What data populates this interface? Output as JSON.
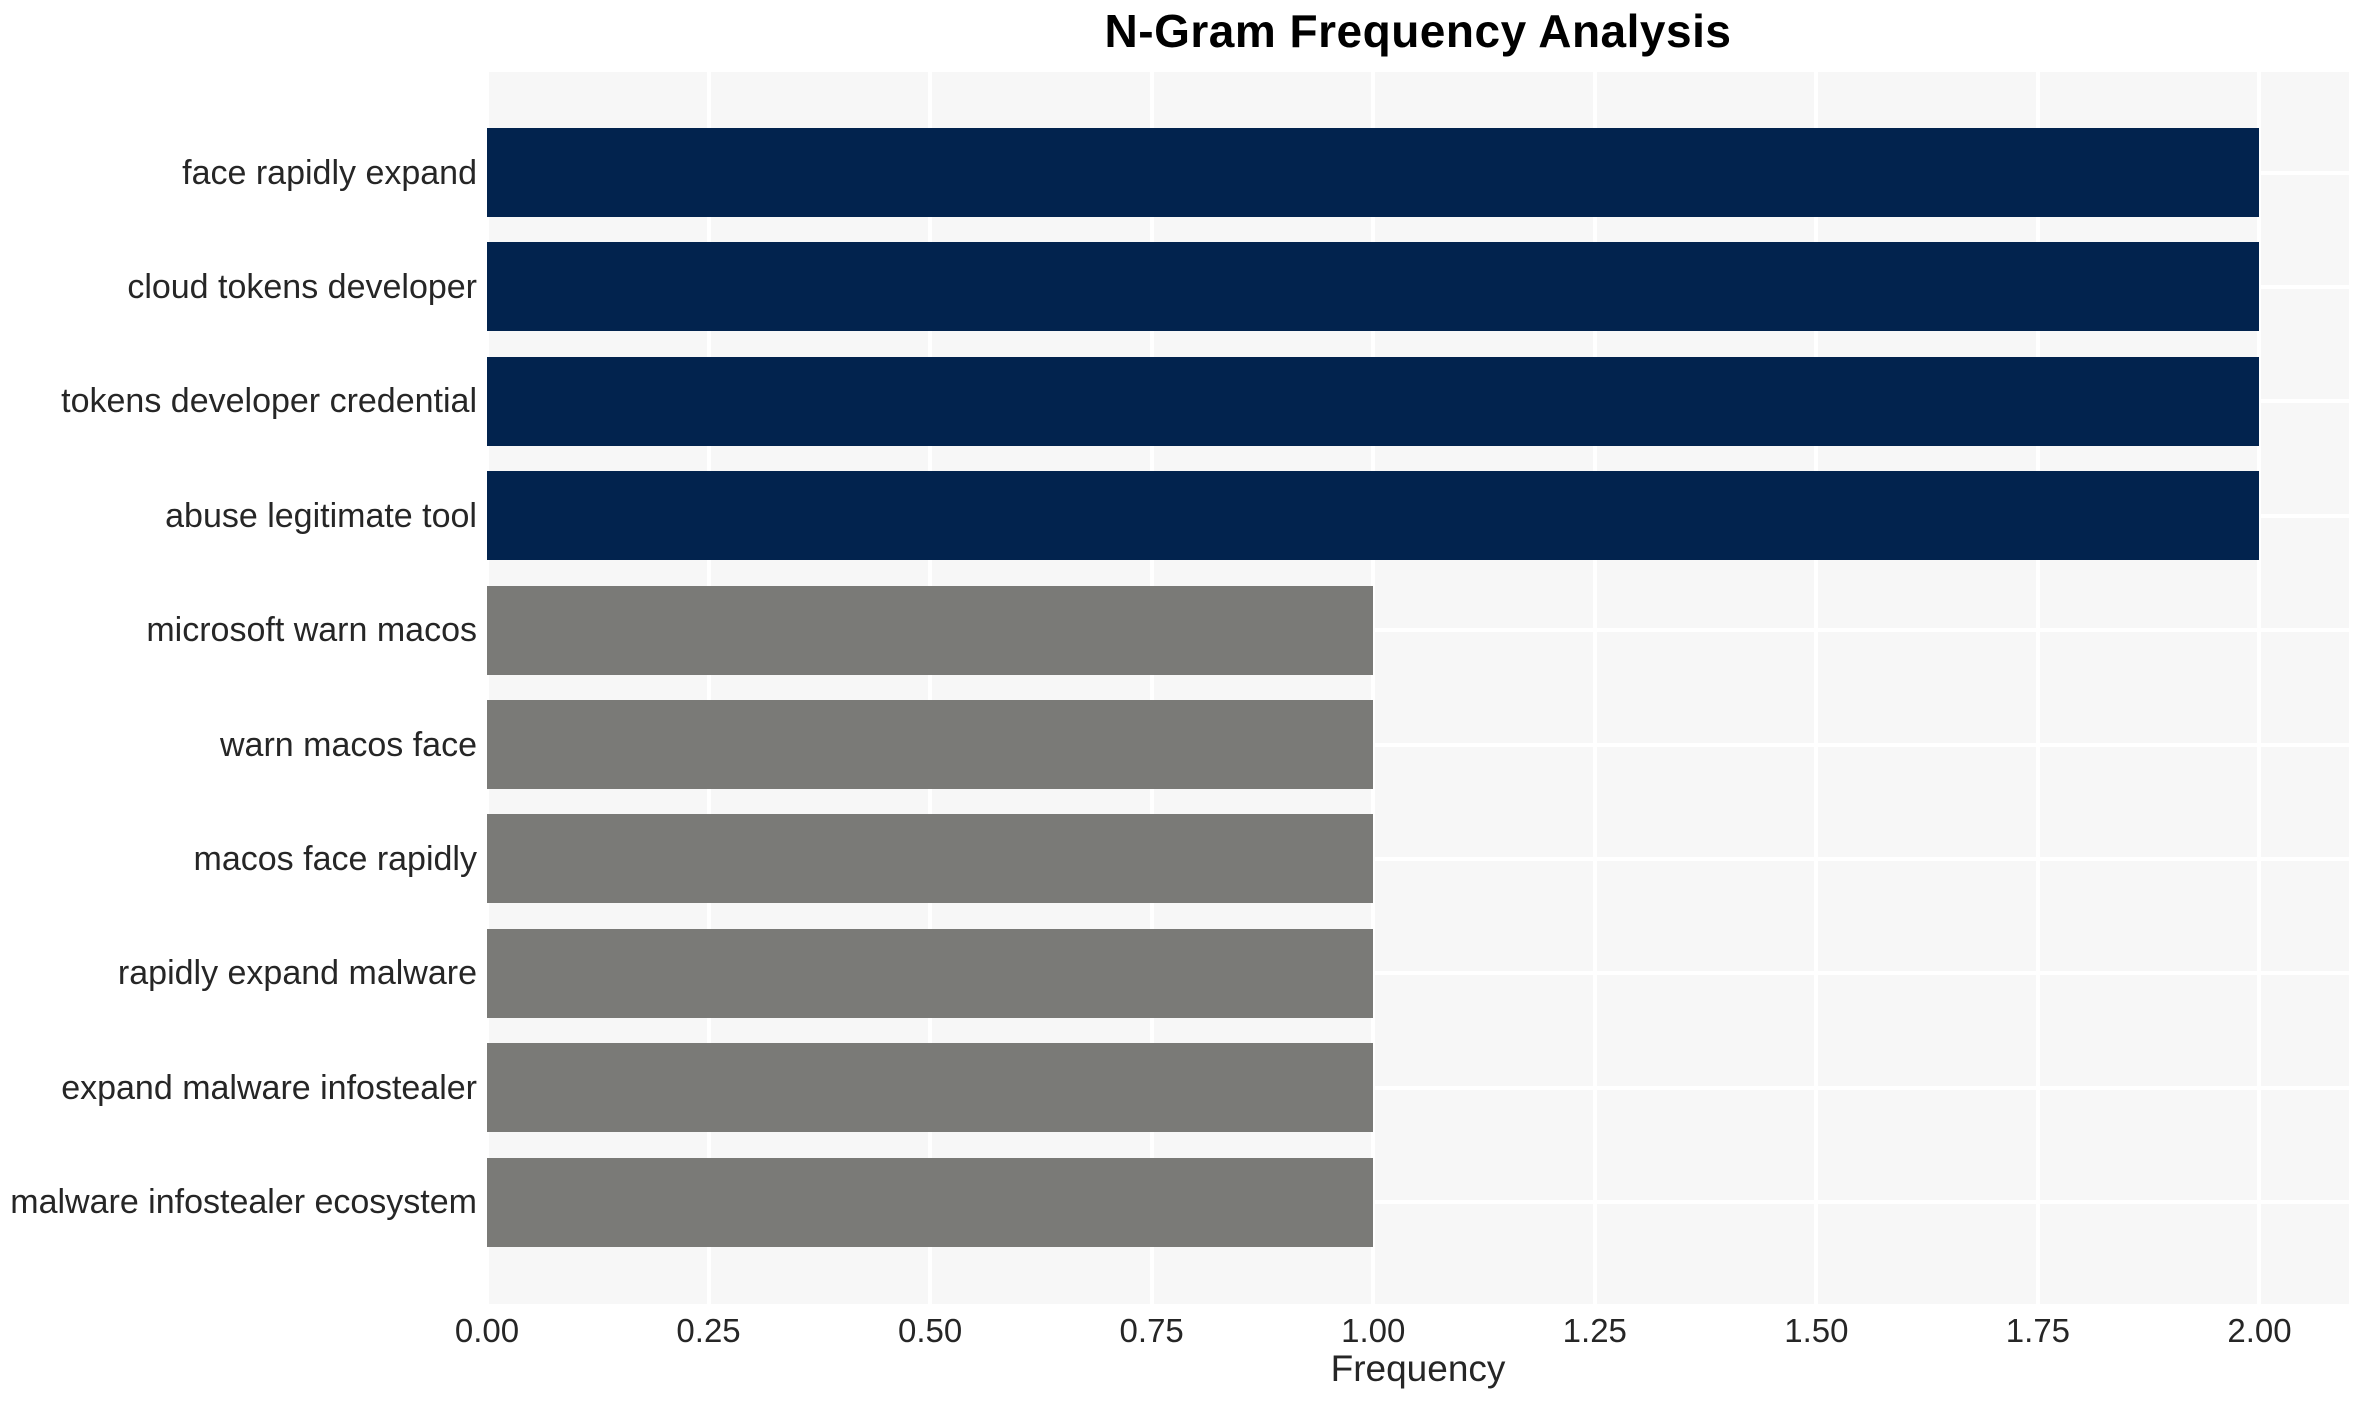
{
  "chart_data": {
    "type": "bar",
    "orientation": "horizontal",
    "title": "N-Gram Frequency Analysis",
    "xlabel": "Frequency",
    "ylabel": "",
    "categories": [
      "face rapidly expand",
      "cloud tokens developer",
      "tokens developer credential",
      "abuse legitimate tool",
      "microsoft warn macos",
      "warn macos face",
      "macos face rapidly",
      "rapidly expand malware",
      "expand malware infostealer",
      "malware infostealer ecosystem"
    ],
    "values": [
      2,
      2,
      2,
      2,
      1,
      1,
      1,
      1,
      1,
      1
    ],
    "bar_colors": [
      "#02234E",
      "#02234E",
      "#02234E",
      "#02234E",
      "#7A7A77",
      "#7A7A77",
      "#7A7A77",
      "#7A7A77",
      "#7A7A77",
      "#7A7A77"
    ],
    "xticks": [
      "0.00",
      "0.25",
      "0.50",
      "0.75",
      "1.00",
      "1.25",
      "1.50",
      "1.75",
      "2.00"
    ],
    "xlim": [
      0,
      2.101
    ],
    "grid": true,
    "legend": false,
    "colors": {
      "bar_high": "#02234E",
      "bar_low": "#7A7A77",
      "panel_background": "#F7F7F7",
      "grid_color": "#FFFFFF",
      "tick_text": "#262626",
      "title_text": "#000000"
    }
  }
}
